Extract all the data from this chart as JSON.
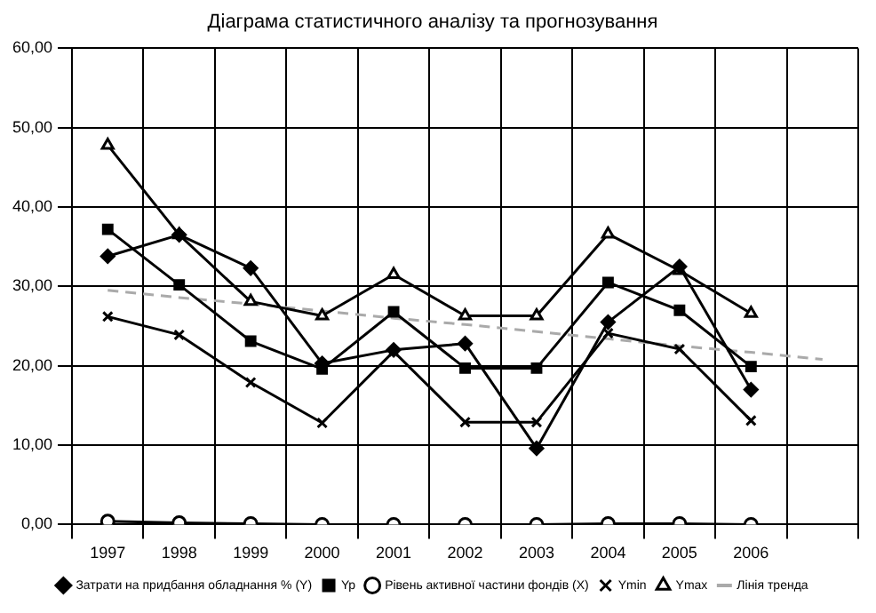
{
  "chart_data": {
    "type": "line",
    "title": "Діаграма статистичного аналізу та прогнозування",
    "categories": [
      "1997",
      "1998",
      "1999",
      "2000",
      "2001",
      "2002",
      "2003",
      "2004",
      "2005",
      "2006",
      null
    ],
    "series": [
      {
        "name": "Затрати на придбання обладнання % (Y)",
        "color": "#000000",
        "marker": "diamond",
        "values": [
          33.8,
          36.5,
          32.3,
          20.3,
          22.0,
          22.8,
          9.6,
          25.5,
          32.5,
          17.0,
          null
        ]
      },
      {
        "name": "Yp",
        "color": "#000000",
        "marker": "square",
        "values": [
          37.2,
          30.2,
          23.1,
          19.6,
          26.8,
          19.7,
          19.7,
          30.5,
          27.0,
          19.9,
          null
        ]
      },
      {
        "name": "Рівень активної частини фондів (X)",
        "color": "#000000",
        "marker": "circle",
        "values": [
          0.4,
          0.2,
          0.1,
          0.0,
          0.0,
          0.0,
          0.0,
          0.1,
          0.1,
          0.0,
          null
        ]
      },
      {
        "name": "Ymin",
        "color": "#000000",
        "marker": "cross",
        "values": [
          26.2,
          23.9,
          17.9,
          12.8,
          21.8,
          12.9,
          12.9,
          24.1,
          22.1,
          13.1,
          null
        ]
      },
      {
        "name": "Ymax",
        "color": "#000000",
        "marker": "triangle",
        "values": [
          47.8,
          36.5,
          28.1,
          26.3,
          31.5,
          26.3,
          26.3,
          36.6,
          32.0,
          26.6,
          null
        ]
      },
      {
        "name": "Лінія тренда",
        "color": "#aaaaaa",
        "marker": "none",
        "line_style": "dashed",
        "values": [
          29.5,
          28.6,
          27.8,
          26.9,
          26.0,
          25.2,
          24.3,
          23.4,
          22.5,
          21.7,
          20.8
        ]
      }
    ],
    "ylim": [
      0,
      60
    ],
    "yticks": [
      {
        "value": 0,
        "label": "0,00"
      },
      {
        "value": 10,
        "label": "10,00"
      },
      {
        "value": 20,
        "label": "20,00"
      },
      {
        "value": 30,
        "label": "30,00"
      },
      {
        "value": 40,
        "label": "40,00"
      },
      {
        "value": 50,
        "label": "50,00"
      },
      {
        "value": 60,
        "label": "60,00"
      }
    ],
    "grid": true,
    "legend": "bottom"
  }
}
